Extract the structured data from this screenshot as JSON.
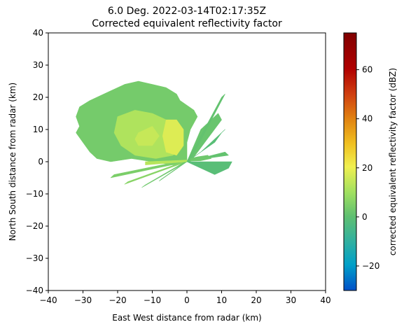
{
  "chart_data": {
    "type": "heatmap",
    "title": "6.0 Deg. 2022-03-14T02:17:35Z",
    "subtitle": "Corrected equivalent reflectivity factor",
    "xlabel": "East West distance from radar (km)",
    "ylabel": "North South distance from radar (km)",
    "xlim": [
      -40,
      40
    ],
    "ylim": [
      -40,
      40
    ],
    "xticks": [
      -40,
      -30,
      -20,
      -10,
      0,
      10,
      20,
      30,
      40
    ],
    "yticks": [
      -40,
      -30,
      -20,
      -10,
      0,
      10,
      20,
      30,
      40
    ],
    "grid": false,
    "colorbar": {
      "label": "corrected equivalent reflectivity factor (dBZ)",
      "range": [
        -30,
        75
      ],
      "ticks": [
        -20,
        0,
        20,
        40,
        60
      ],
      "colormap": [
        "#0050c8",
        "#00a0c8",
        "#30b0a0",
        "#60c070",
        "#a0e060",
        "#f0f050",
        "#f0c020",
        "#e08010",
        "#d04010",
        "#b00000",
        "#800000"
      ]
    },
    "echo_regions": [
      {
        "polygon": [
          [
            -31,
            17
          ],
          [
            -28,
            19
          ],
          [
            -26,
            20
          ],
          [
            -22,
            22
          ],
          [
            -18,
            24
          ],
          [
            -14,
            25
          ],
          [
            -10,
            24
          ],
          [
            -6,
            23
          ],
          [
            -3,
            21
          ],
          [
            -2,
            19
          ],
          [
            2,
            16
          ],
          [
            3,
            14
          ],
          [
            1,
            10
          ],
          [
            0,
            6
          ],
          [
            0,
            0
          ],
          [
            -4,
            -1
          ],
          [
            -10,
            0
          ],
          [
            -16,
            1
          ],
          [
            -22,
            0
          ],
          [
            -26,
            1
          ],
          [
            -28,
            3
          ],
          [
            -30,
            6
          ],
          [
            -32,
            9
          ],
          [
            -31,
            11
          ],
          [
            -32,
            14
          ]
        ],
        "dbz": 5
      },
      {
        "polygon": [
          [
            -20,
            14
          ],
          [
            -15,
            16
          ],
          [
            -10,
            15
          ],
          [
            -6,
            13
          ],
          [
            -3,
            10
          ],
          [
            -2,
            6
          ],
          [
            -4,
            2
          ],
          [
            -9,
            1
          ],
          [
            -15,
            2
          ],
          [
            -19,
            5
          ],
          [
            -21,
            9
          ]
        ],
        "dbz": 14
      },
      {
        "polygon": [
          [
            -6,
            13
          ],
          [
            -3,
            13
          ],
          [
            -1,
            10
          ],
          [
            -1,
            5
          ],
          [
            -3,
            2
          ],
          [
            -6,
            3
          ],
          [
            -7,
            8
          ]
        ],
        "dbz": 20
      },
      {
        "polygon": [
          [
            -14,
            9
          ],
          [
            -10,
            11
          ],
          [
            -8,
            8
          ],
          [
            -10,
            5
          ],
          [
            -14,
            5
          ],
          [
            -15,
            7
          ]
        ],
        "dbz": 17
      },
      {
        "polygon": [
          [
            0,
            0
          ],
          [
            -22,
            -5
          ],
          [
            -21,
            -4
          ],
          [
            0,
            0.6
          ]
        ],
        "dbz": 6
      },
      {
        "polygon": [
          [
            0,
            0
          ],
          [
            -18,
            -7
          ],
          [
            -17,
            -6.2
          ],
          [
            0,
            0.4
          ]
        ],
        "dbz": 8
      },
      {
        "polygon": [
          [
            0,
            0
          ],
          [
            -13,
            -8
          ],
          [
            -12,
            -7.2
          ],
          [
            0,
            0.3
          ]
        ],
        "dbz": 4
      },
      {
        "polygon": [
          [
            0,
            0
          ],
          [
            -8,
            -6
          ],
          [
            -7.5,
            -5.5
          ],
          [
            0,
            0.2
          ]
        ],
        "dbz": 3
      },
      {
        "polygon": [
          [
            0,
            0
          ],
          [
            -12,
            -1
          ],
          [
            -12,
            0
          ],
          [
            0,
            0.5
          ]
        ],
        "dbz": 15
      },
      {
        "polygon": [
          [
            0,
            0
          ],
          [
            4,
            10
          ],
          [
            6,
            12
          ],
          [
            9,
            15
          ],
          [
            10,
            13
          ],
          [
            1,
            0
          ]
        ],
        "dbz": 3
      },
      {
        "polygon": [
          [
            0,
            0
          ],
          [
            10,
            20
          ],
          [
            11,
            21
          ],
          [
            1,
            0.5
          ]
        ],
        "dbz": 2
      },
      {
        "polygon": [
          [
            0,
            0
          ],
          [
            8,
            6
          ],
          [
            10,
            9
          ],
          [
            11,
            10
          ],
          [
            4,
            3
          ]
        ],
        "dbz": 0
      },
      {
        "polygon": [
          [
            0,
            0
          ],
          [
            13,
            0
          ],
          [
            12,
            -2
          ],
          [
            10,
            -3
          ],
          [
            8,
            -4
          ],
          [
            1,
            -0.5
          ]
        ],
        "dbz": 0
      },
      {
        "polygon": [
          [
            0,
            0
          ],
          [
            11,
            3
          ],
          [
            12,
            2
          ],
          [
            1,
            0.3
          ]
        ],
        "dbz": 2
      },
      {
        "polygon": [
          [
            1,
            1
          ],
          [
            3,
            1.5
          ],
          [
            6,
            2
          ],
          [
            7,
            1
          ],
          [
            4,
            0.3
          ],
          [
            1,
            0.2
          ]
        ],
        "dbz": 4
      }
    ]
  }
}
